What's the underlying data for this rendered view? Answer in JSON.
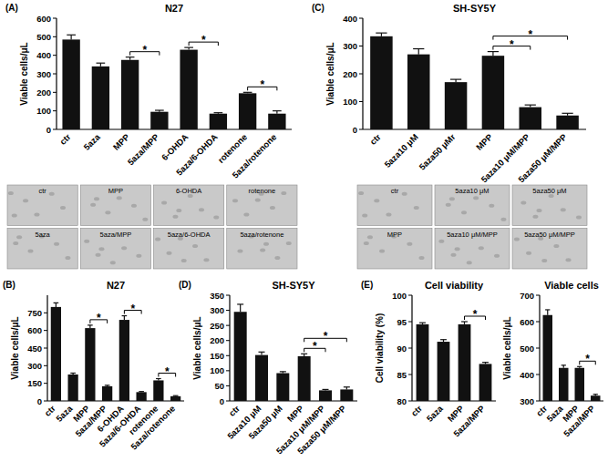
{
  "chart_data": [
    {
      "type": "bar",
      "panel": "(A)",
      "title": "N27",
      "y_label": "Viable cells/μL",
      "categories": [
        "ctr",
        "5aza",
        "MPP",
        "5aza/MPP",
        "6-OHDA",
        "5aza/6-OHDA",
        "rotenone",
        "5aza/rotenone"
      ],
      "values": [
        485,
        340,
        375,
        95,
        430,
        85,
        195,
        85
      ],
      "errors": [
        25,
        18,
        15,
        8,
        12,
        5,
        5,
        15
      ],
      "color": "#111111",
      "ylim": [
        0,
        600
      ],
      "yticks": [
        0,
        100,
        200,
        300,
        400,
        500,
        600
      ],
      "significance": [
        {
          "from": 2,
          "to": 3,
          "label": "*"
        },
        {
          "from": 4,
          "to": 5,
          "label": "*"
        },
        {
          "from": 6,
          "to": 7,
          "label": "*"
        }
      ]
    },
    {
      "type": "bar",
      "panel": "(C)",
      "title": "SH-SY5Y",
      "y_label": "Viable cells/μL",
      "categories": [
        "ctr",
        "5aza10 μM",
        "5aza50 μMr",
        "MPP",
        "5aza10 μM/MPP",
        "5aza50 μM/MPP"
      ],
      "values": [
        335,
        270,
        170,
        265,
        80,
        50
      ],
      "errors": [
        12,
        20,
        10,
        15,
        8,
        8
      ],
      "color": "#111111",
      "ylim": [
        0,
        400
      ],
      "yticks": [
        0,
        100,
        200,
        300,
        400
      ],
      "significance": [
        {
          "from": 3,
          "to": 4,
          "label": "*"
        },
        {
          "from": 3,
          "to": 5,
          "label": "*"
        }
      ]
    },
    {
      "type": "bar",
      "panel": "(B)",
      "title": "N27",
      "y_label": "Viable cells/μL",
      "categories": [
        "ctr",
        "5aza",
        "MPP",
        "5aza/MPP",
        "6-OHDA",
        "5aza/6-OHDA",
        "rotenone",
        "5aza/rotenone"
      ],
      "values": [
        800,
        225,
        620,
        125,
        690,
        75,
        175,
        40
      ],
      "errors": [
        35,
        12,
        25,
        8,
        35,
        5,
        15,
        5
      ],
      "color": "#111111",
      "ylim": [
        0,
        900
      ],
      "yticks": [
        0,
        150,
        300,
        450,
        600,
        750
      ],
      "significance": [
        {
          "from": 2,
          "to": 3,
          "label": "*"
        },
        {
          "from": 4,
          "to": 5,
          "label": "*"
        },
        {
          "from": 6,
          "to": 7,
          "label": "*"
        }
      ]
    },
    {
      "type": "bar",
      "panel": "(D)",
      "title": "SH-SY5Y",
      "y_label": "Viable cells/μL",
      "categories": [
        "ctr",
        "5aza10 μM",
        "5aza50 μM",
        "MPP",
        "5aza10 μM/MPP",
        "5aza50 μM/MPP"
      ],
      "values": [
        295,
        152,
        92,
        148,
        35,
        38
      ],
      "errors": [
        25,
        10,
        5,
        8,
        3,
        8
      ],
      "color": "#111111",
      "ylim": [
        0,
        350
      ],
      "yticks": [
        0,
        50,
        100,
        150,
        200,
        250,
        300,
        350
      ],
      "significance": [
        {
          "from": 3,
          "to": 4,
          "label": "*"
        },
        {
          "from": 3,
          "to": 5,
          "label": "*"
        }
      ]
    },
    {
      "type": "bar",
      "panel": "(E)",
      "title": "Cell viability",
      "y_label": "Cell viability (%)",
      "categories": [
        "ctr",
        "5aza",
        "MPP",
        "5aza/MPP"
      ],
      "values": [
        94.5,
        91.2,
        94.5,
        87.0
      ],
      "errors": [
        0.3,
        0.4,
        0.5,
        0.3
      ],
      "color": "#111111",
      "ylim": [
        80,
        100
      ],
      "yticks": [
        80,
        85,
        90,
        95,
        100
      ],
      "significance": [
        {
          "from": 2,
          "to": 3,
          "label": "*"
        }
      ]
    },
    {
      "type": "bar",
      "title": "Viable cells",
      "y_label": "Viable cells/μL",
      "categories": [
        "ctr",
        "5aza",
        "MPP",
        "5aza/MPP"
      ],
      "values": [
        625,
        425,
        425,
        320
      ],
      "errors": [
        20,
        10,
        5,
        5
      ],
      "color": "#111111",
      "ylim": [
        300,
        700
      ],
      "yticks": [
        300,
        400,
        500,
        600,
        700
      ],
      "significance": [
        {
          "from": 2,
          "to": 3,
          "label": "*"
        }
      ]
    }
  ],
  "micrographs": [
    {
      "rows": [
        [
          "ctr",
          "MPP",
          "6-OHDA",
          "rotenone"
        ],
        [
          "5aza",
          "5aza/MPP",
          "5aza/6-OHDA",
          "5aza/rotenone"
        ]
      ]
    },
    {
      "rows": [
        [
          "ctr",
          "5aza10 μM",
          "5aza50 μM"
        ],
        [
          "MPP",
          "5aza10 μM/MPP",
          "5aza50 μM/MPP"
        ]
      ]
    }
  ]
}
